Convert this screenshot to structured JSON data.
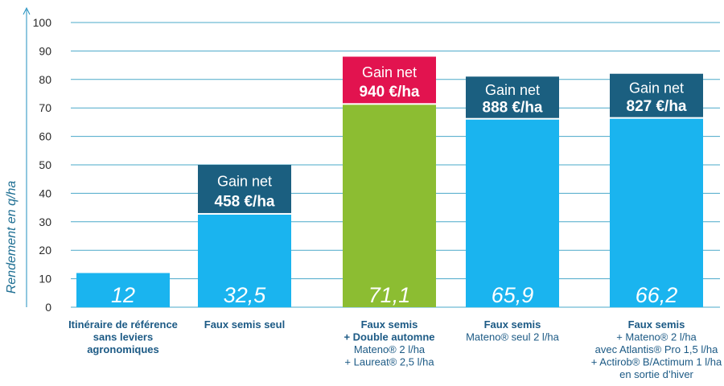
{
  "chart_data": {
    "type": "bar",
    "ylabel": "Rendement en q/ha",
    "ylim": [
      0,
      100
    ],
    "yticks": [
      0,
      10,
      20,
      30,
      40,
      50,
      60,
      70,
      80,
      90,
      100
    ],
    "grid": true,
    "bars": [
      {
        "value": 12,
        "value_label": "12",
        "color": "#1ab4ef",
        "gain": null,
        "label_lines": [
          {
            "text": "Itinéraire de référence",
            "bold": true
          },
          {
            "text": "sans leviers",
            "bold": true
          },
          {
            "text": "agronomiques",
            "bold": true
          }
        ]
      },
      {
        "value": 32.5,
        "value_label": "32,5",
        "color": "#1ab4ef",
        "gain": {
          "line1": "Gain net",
          "line2": "458 €/ha",
          "color": "#1b5f80",
          "top_value": 50
        },
        "label_lines": [
          {
            "text": "Faux semis seul",
            "bold": true
          }
        ]
      },
      {
        "value": 71.1,
        "value_label": "71,1",
        "color": "#8cbd32",
        "gain": {
          "line1": "Gain net",
          "line2": "940 €/ha",
          "color": "#e2134f",
          "top_value": 88
        },
        "label_lines": [
          {
            "text": "Faux semis",
            "bold": true
          },
          {
            "text": "+ Double automne",
            "bold": true
          },
          {
            "text": "Mateno® 2 l/ha",
            "bold": false
          },
          {
            "text": "+ Laureat® 2,5 l/ha",
            "bold": false
          }
        ]
      },
      {
        "value": 65.9,
        "value_label": "65,9",
        "color": "#1ab4ef",
        "gain": {
          "line1": "Gain net",
          "line2": "888 €/ha",
          "color": "#1b5f80",
          "top_value": 81
        },
        "label_lines": [
          {
            "text": "Faux semis",
            "bold": true
          },
          {
            "text": "Mateno® seul 2 l/ha",
            "bold": false
          }
        ]
      },
      {
        "value": 66.2,
        "value_label": "66,2",
        "color": "#1ab4ef",
        "gain": {
          "line1": "Gain net",
          "line2": "827 €/ha",
          "color": "#1b5f80",
          "top_value": 82
        },
        "label_lines": [
          {
            "text": "Faux semis",
            "bold": true
          },
          {
            "text": "+ Mateno® 2 l/ha",
            "bold": false
          },
          {
            "text": "avec Atlantis® Pro 1,5 l/ha",
            "bold": false
          },
          {
            "text": "+ Actirob® B/Actimum 1 l/ha",
            "bold": false
          },
          {
            "text": "en sortie d’hiver",
            "bold": false
          }
        ]
      }
    ]
  }
}
